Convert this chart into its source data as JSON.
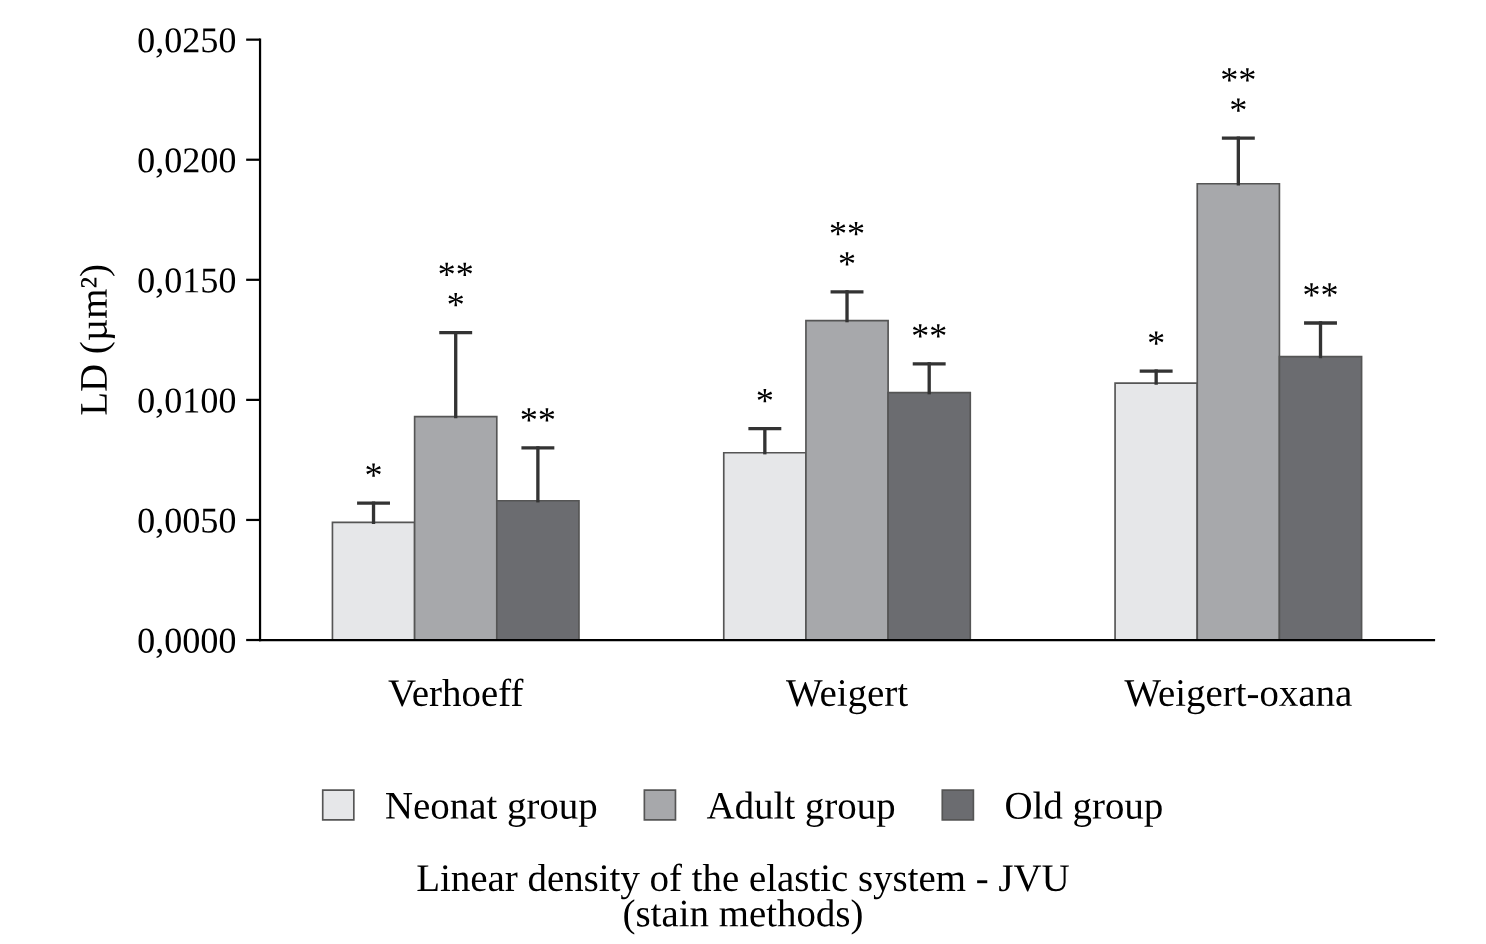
{
  "chart_data": {
    "type": "bar",
    "title": "Linear density of the elastic system - JVU\n(stain methods)",
    "ylabel": "LD (µm²)",
    "categories": [
      "Verhoeff",
      "Weigert",
      "Weigert-oxana"
    ],
    "series": [
      {
        "name": "Neonat group",
        "color": "#e6e7e9",
        "values": [
          0.0049,
          0.0078,
          0.0107
        ],
        "errors": [
          0.0008,
          0.001,
          0.0005
        ],
        "value_labels": [
          "*",
          "*",
          "*"
        ]
      },
      {
        "name": "Adult group",
        "color": "#a7a8ab",
        "values": [
          0.0093,
          0.0133,
          0.019
        ],
        "errors": [
          0.0035,
          0.0012,
          0.0019
        ],
        "value_labels": [
          "**\n*",
          "**\n*",
          "**\n*"
        ]
      },
      {
        "name": "Old group",
        "color": "#6b6c70",
        "values": [
          0.0058,
          0.0103,
          0.0118
        ],
        "errors": [
          0.0022,
          0.0012,
          0.0014
        ],
        "value_labels": [
          "**",
          "**",
          "**"
        ]
      }
    ],
    "ylim": [
      0,
      0.025
    ],
    "yticks": [
      {
        "value": 0,
        "label": "0,0000"
      },
      {
        "value": 0.005,
        "label": "0,0050"
      },
      {
        "value": 0.01,
        "label": "0,0100"
      },
      {
        "value": 0.015,
        "label": "0,0150"
      },
      {
        "value": 0.02,
        "label": "0,0200"
      },
      {
        "value": 0.025,
        "label": "0,0250"
      }
    ],
    "legend": "bottom",
    "grid": false
  }
}
